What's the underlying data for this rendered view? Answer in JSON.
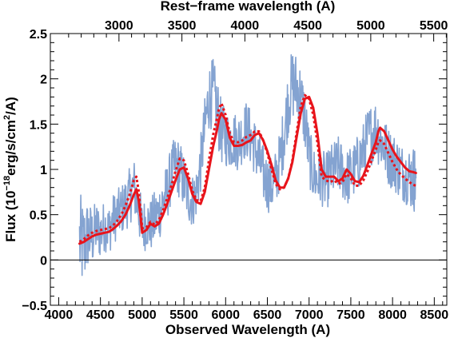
{
  "chart_data": {
    "type": "line",
    "title": "",
    "xlabel": "Observed Wavelength (A)",
    "ylabel_prefix": "Flux (10",
    "ylabel_exp1": "−18",
    "ylabel_mid": "erg/s/cm",
    "ylabel_exp2": "2",
    "ylabel_suffix": "/A)",
    "x2label": "Rest−frame wavelength (A)",
    "xlim": [
      3900,
      8650
    ],
    "ylim": [
      -0.5,
      2.5
    ],
    "x2lim": [
      2455,
      5604
    ],
    "xticks": [
      4000,
      4500,
      5000,
      5500,
      6000,
      6500,
      7000,
      7500,
      8000,
      8500
    ],
    "yticks": [
      -0.5,
      0,
      0.5,
      1,
      1.5,
      2,
      2.5
    ],
    "x2ticks": [
      3000,
      3500,
      4000,
      4500,
      5000,
      5500
    ],
    "xtick_labels": [
      "4000",
      "4500",
      "5000",
      "5500",
      "6000",
      "6500",
      "7000",
      "7500",
      "8000",
      "8500"
    ],
    "ytick_labels": [
      "−0.5",
      "0",
      "0.5",
      "1",
      "1.5",
      "2",
      "2.5"
    ],
    "x2tick_labels": [
      "3000",
      "3500",
      "4000",
      "4500",
      "5000",
      "5500"
    ],
    "zero_line": 0,
    "grid": false,
    "legend": "none",
    "series": [
      {
        "style": "noisy-spectrum",
        "color": "#7799cc",
        "x": [
          4250,
          4300,
          4350,
          4400,
          4450,
          4500,
          4550,
          4600,
          4650,
          4700,
          4750,
          4800,
          4850,
          4900,
          4950,
          5000,
          5050,
          5100,
          5150,
          5200,
          5250,
          5300,
          5350,
          5400,
          5450,
          5500,
          5550,
          5600,
          5650,
          5700,
          5750,
          5800,
          5850,
          5900,
          5950,
          6000,
          6050,
          6100,
          6150,
          6200,
          6250,
          6300,
          6350,
          6400,
          6450,
          6500,
          6550,
          6600,
          6650,
          6700,
          6750,
          6800,
          6850,
          6900,
          6950,
          7000,
          7050,
          7100,
          7150,
          7200,
          7250,
          7300,
          7350,
          7400,
          7450,
          7500,
          7550,
          7600,
          7650,
          7700,
          7750,
          7800,
          7850,
          7900,
          7950,
          8000,
          8050,
          8100,
          8150,
          8200,
          8250,
          8280
        ],
        "y": [
          0.2,
          0.15,
          0.28,
          0.25,
          0.35,
          0.3,
          0.38,
          0.33,
          0.45,
          0.5,
          0.55,
          0.62,
          0.7,
          0.82,
          0.6,
          0.35,
          0.42,
          0.38,
          0.45,
          0.52,
          0.65,
          0.75,
          0.95,
          1.05,
          1.0,
          0.85,
          0.72,
          0.65,
          0.75,
          1.05,
          1.45,
          1.8,
          1.85,
          1.65,
          1.4,
          1.35,
          1.32,
          1.34,
          1.3,
          1.38,
          1.45,
          1.35,
          1.25,
          1.1,
          0.95,
          0.85,
          0.82,
          0.9,
          1.1,
          1.4,
          1.75,
          1.95,
          1.9,
          1.8,
          1.55,
          1.15,
          0.95,
          0.88,
          0.92,
          0.85,
          0.95,
          1.0,
          1.05,
          0.98,
          0.9,
          0.95,
          1.0,
          1.1,
          1.2,
          1.35,
          1.4,
          1.45,
          1.35,
          1.25,
          1.15,
          1.1,
          1.05,
          0.98,
          0.95,
          0.92,
          0.9,
          0.9
        ],
        "scatter": [
          0.55,
          0.5,
          0.4,
          0.35,
          0.3,
          0.3,
          0.28,
          0.28,
          0.28,
          0.28,
          0.28,
          0.3,
          0.32,
          0.32,
          0.32,
          0.3,
          0.3,
          0.3,
          0.32,
          0.32,
          0.32,
          0.32,
          0.32,
          0.33,
          0.33,
          0.32,
          0.32,
          0.3,
          0.3,
          0.32,
          0.35,
          0.38,
          0.38,
          0.38,
          0.35,
          0.32,
          0.32,
          0.32,
          0.32,
          0.32,
          0.32,
          0.32,
          0.32,
          0.32,
          0.32,
          0.32,
          0.32,
          0.32,
          0.33,
          0.35,
          0.38,
          0.4,
          0.4,
          0.38,
          0.35,
          0.33,
          0.32,
          0.32,
          0.32,
          0.32,
          0.32,
          0.32,
          0.32,
          0.32,
          0.32,
          0.32,
          0.32,
          0.33,
          0.33,
          0.33,
          0.35,
          0.35,
          0.35,
          0.33,
          0.33,
          0.33,
          0.33,
          0.33,
          0.32,
          0.35,
          0.38,
          0.38
        ]
      },
      {
        "style": "solid",
        "color": "#e8141b",
        "x": [
          4250,
          4300,
          4350,
          4400,
          4450,
          4500,
          4550,
          4600,
          4650,
          4700,
          4750,
          4800,
          4850,
          4900,
          4930,
          4960,
          5000,
          5050,
          5100,
          5150,
          5200,
          5250,
          5300,
          5350,
          5400,
          5450,
          5500,
          5550,
          5600,
          5650,
          5700,
          5750,
          5800,
          5850,
          5900,
          5920,
          5950,
          6000,
          6050,
          6100,
          6150,
          6200,
          6250,
          6300,
          6350,
          6400,
          6450,
          6500,
          6550,
          6600,
          6650,
          6700,
          6750,
          6800,
          6850,
          6900,
          6950,
          7000,
          7050,
          7100,
          7150,
          7200,
          7250,
          7300,
          7350,
          7400,
          7450,
          7500,
          7550,
          7600,
          7650,
          7700,
          7750,
          7800,
          7830,
          7850,
          7900,
          7950,
          8000,
          8050,
          8100,
          8150,
          8200,
          8250,
          8280
        ],
        "y": [
          0.18,
          0.2,
          0.23,
          0.26,
          0.28,
          0.29,
          0.3,
          0.31,
          0.34,
          0.38,
          0.43,
          0.5,
          0.6,
          0.72,
          0.78,
          0.65,
          0.3,
          0.33,
          0.4,
          0.37,
          0.4,
          0.5,
          0.62,
          0.75,
          0.88,
          1.0,
          1.02,
          0.9,
          0.73,
          0.64,
          0.62,
          0.75,
          1.0,
          1.25,
          1.45,
          1.55,
          1.62,
          1.55,
          1.35,
          1.26,
          1.26,
          1.27,
          1.3,
          1.32,
          1.38,
          1.4,
          1.32,
          1.2,
          1.05,
          0.88,
          0.8,
          0.8,
          0.9,
          1.08,
          1.35,
          1.62,
          1.78,
          1.8,
          1.68,
          1.4,
          1.0,
          0.92,
          0.92,
          0.92,
          0.87,
          0.9,
          1.0,
          0.95,
          0.87,
          0.86,
          0.93,
          1.05,
          1.18,
          1.3,
          1.42,
          1.46,
          1.42,
          1.32,
          1.22,
          1.14,
          1.08,
          1.02,
          0.98,
          0.97,
          0.96
        ]
      },
      {
        "style": "dotted",
        "color": "#e8141b",
        "x": [
          4250,
          4300,
          4350,
          4400,
          4450,
          4500,
          4550,
          4600,
          4650,
          4700,
          4750,
          4800,
          4850,
          4900,
          4930,
          4960,
          5000,
          5050,
          5100,
          5150,
          5200,
          5250,
          5300,
          5350,
          5400,
          5450,
          5500,
          5550,
          5600,
          5650,
          5700,
          5750,
          5800,
          5850,
          5900,
          5920,
          5950,
          6000,
          6050,
          6100,
          6150,
          6200,
          6250,
          6300,
          6350,
          6400,
          6450,
          6500,
          6550,
          6600,
          6650,
          6700,
          6750,
          6800,
          6850,
          6900,
          6950,
          7000,
          7050,
          7100,
          7150,
          7200,
          7250,
          7300,
          7350,
          7400,
          7450,
          7500,
          7550,
          7600,
          7650,
          7700,
          7750,
          7800,
          7830,
          7850,
          7900,
          7950,
          8000,
          8050,
          8100,
          8150,
          8200,
          8250,
          8280
        ],
        "y": [
          0.2,
          0.23,
          0.27,
          0.3,
          0.32,
          0.33,
          0.34,
          0.35,
          0.38,
          0.43,
          0.5,
          0.6,
          0.72,
          0.88,
          0.92,
          0.75,
          0.35,
          0.36,
          0.42,
          0.39,
          0.44,
          0.55,
          0.68,
          0.82,
          0.98,
          1.12,
          1.1,
          0.95,
          0.77,
          0.66,
          0.65,
          0.8,
          1.1,
          1.38,
          1.58,
          1.67,
          1.73,
          1.6,
          1.4,
          1.3,
          1.3,
          1.32,
          1.36,
          1.38,
          1.42,
          1.42,
          1.32,
          1.18,
          1.0,
          0.84,
          0.78,
          0.8,
          0.9,
          1.1,
          1.4,
          1.7,
          1.82,
          1.78,
          1.6,
          1.3,
          0.92,
          0.88,
          0.86,
          0.88,
          0.84,
          0.86,
          0.95,
          0.9,
          0.82,
          0.82,
          0.88,
          0.98,
          1.1,
          1.22,
          1.3,
          1.32,
          1.28,
          1.18,
          1.08,
          1.0,
          0.94,
          0.9,
          0.86,
          0.83,
          0.82
        ]
      }
    ]
  }
}
